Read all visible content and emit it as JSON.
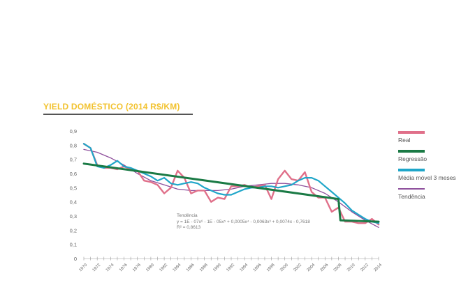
{
  "chart_data": {
    "type": "line",
    "title": "YIELD DOMÉSTICO (2014 R$/KM)",
    "ylim": [
      0,
      0.9
    ],
    "yticks": [
      "0",
      "0,1",
      "0,2",
      "0,3",
      "0,4",
      "0,5",
      "0,6",
      "0,7",
      "0,8",
      "0,9"
    ],
    "x_start": 1970,
    "x_end": 2014,
    "xtick_labels": [
      "1970",
      "1972",
      "1974",
      "1976",
      "1978",
      "1980",
      "1982",
      "1984",
      "1986",
      "1988",
      "1990",
      "1992",
      "1994",
      "1996",
      "1998",
      "2000",
      "2002",
      "2004",
      "2006",
      "2008",
      "2010",
      "2012",
      "2014"
    ],
    "legend_position": "right",
    "grid": false,
    "series": [
      {
        "name": "Real",
        "color": "#e0708a",
        "x": [
          1970,
          1971,
          1972,
          1973,
          1974,
          1975,
          1976,
          1977,
          1978,
          1979,
          1980,
          1981,
          1982,
          1983,
          1984,
          1985,
          1986,
          1987,
          1988,
          1989,
          1990,
          1991,
          1992,
          1993,
          1994,
          1995,
          1996,
          1997,
          1998,
          1999,
          2000,
          2001,
          2002,
          2003,
          2004,
          2005,
          2006,
          2007,
          2008,
          2009,
          2010,
          2011,
          2012,
          2013,
          2014
        ],
        "values": [
          0.81,
          0.78,
          0.66,
          0.64,
          0.64,
          0.63,
          0.65,
          0.63,
          0.62,
          0.55,
          0.54,
          0.52,
          0.46,
          0.5,
          0.62,
          0.57,
          0.46,
          0.48,
          0.48,
          0.4,
          0.43,
          0.42,
          0.51,
          0.51,
          0.52,
          0.5,
          0.51,
          0.52,
          0.42,
          0.56,
          0.62,
          0.56,
          0.55,
          0.61,
          0.47,
          0.43,
          0.43,
          0.33,
          0.36,
          0.26,
          0.26,
          0.25,
          0.25,
          0.28,
          0.24
        ]
      },
      {
        "name": "Regressão",
        "color": "#1a7a45",
        "x": [
          1970,
          2008,
          2008.3,
          2014
        ],
        "values": [
          0.67,
          0.42,
          0.27,
          0.26
        ]
      },
      {
        "name": "Média móvel 3 meses",
        "color": "#1fa6c9",
        "x": [
          1970,
          1971,
          1972,
          1973,
          1974,
          1975,
          1976,
          1977,
          1978,
          1979,
          1980,
          1981,
          1982,
          1983,
          1984,
          1985,
          1986,
          1987,
          1988,
          1989,
          1990,
          1991,
          1992,
          1993,
          1994,
          1995,
          1996,
          1997,
          1998,
          1999,
          2000,
          2001,
          2002,
          2003,
          2004,
          2005,
          2006,
          2007,
          2008,
          2009,
          2010,
          2011,
          2012,
          2013,
          2014
        ],
        "values": [
          0.81,
          0.78,
          0.65,
          0.64,
          0.66,
          0.69,
          0.65,
          0.64,
          0.62,
          0.6,
          0.58,
          0.55,
          0.57,
          0.53,
          0.52,
          0.53,
          0.54,
          0.53,
          0.5,
          0.48,
          0.46,
          0.45,
          0.45,
          0.47,
          0.49,
          0.5,
          0.5,
          0.51,
          0.51,
          0.5,
          0.51,
          0.52,
          0.55,
          0.57,
          0.57,
          0.55,
          0.51,
          0.47,
          0.43,
          0.39,
          0.34,
          0.31,
          0.28,
          0.26,
          0.25
        ]
      },
      {
        "name": "Tendência",
        "color": "#8e4f9c",
        "x": [
          1970,
          1972,
          1974,
          1976,
          1978,
          1980,
          1982,
          1984,
          1986,
          1988,
          1990,
          1992,
          1994,
          1996,
          1998,
          2000,
          2002,
          2004,
          2006,
          2008,
          2010,
          2012,
          2014
        ],
        "values": [
          0.77,
          0.75,
          0.71,
          0.66,
          0.6,
          0.55,
          0.52,
          0.49,
          0.48,
          0.48,
          0.48,
          0.49,
          0.51,
          0.52,
          0.53,
          0.53,
          0.52,
          0.5,
          0.46,
          0.4,
          0.33,
          0.27,
          0.22
        ]
      }
    ],
    "annotation": {
      "line1": "Tendência",
      "line2": "y = 1E - 07x⁶ - 1E - 05x⁵ + 0,0005x⁴ - 0,0063x³ + 0,0074x - 0,7618",
      "line3": "R² = 0,8613"
    }
  }
}
